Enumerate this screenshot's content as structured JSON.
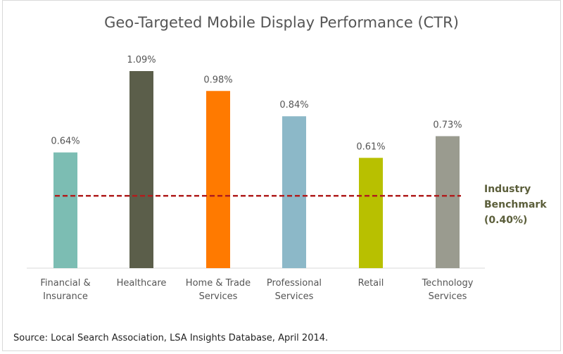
{
  "chart_data": {
    "type": "bar",
    "title": "Geo-Targeted Mobile Display Performance (CTR)",
    "categories": [
      [
        "Financial &",
        "Insurance"
      ],
      [
        "Healthcare"
      ],
      [
        "Home & Trade",
        "Services"
      ],
      [
        "Professional",
        "Services"
      ],
      [
        "Retail"
      ],
      [
        "Technology",
        "Services"
      ]
    ],
    "values": [
      0.64,
      1.09,
      0.98,
      0.84,
      0.61,
      0.73
    ],
    "value_labels": [
      "0.64%",
      "1.09%",
      "0.98%",
      "0.84%",
      "0.61%",
      "0.73%"
    ],
    "colors": [
      "#7cbdb3",
      "#5b5e4a",
      "#ff7a00",
      "#8cb8c8",
      "#b8c000",
      "#9a9b8f"
    ],
    "ylim": [
      0,
      1.09
    ],
    "benchmark": {
      "value": 0.4,
      "label_lines": [
        "Industry",
        "Benchmark",
        "(0.40%)"
      ],
      "color": "#b01e1e"
    },
    "xlabel": "",
    "ylabel": "",
    "grid": false
  },
  "source": "Source: Local Search Association, LSA Insights Database, April 2014."
}
